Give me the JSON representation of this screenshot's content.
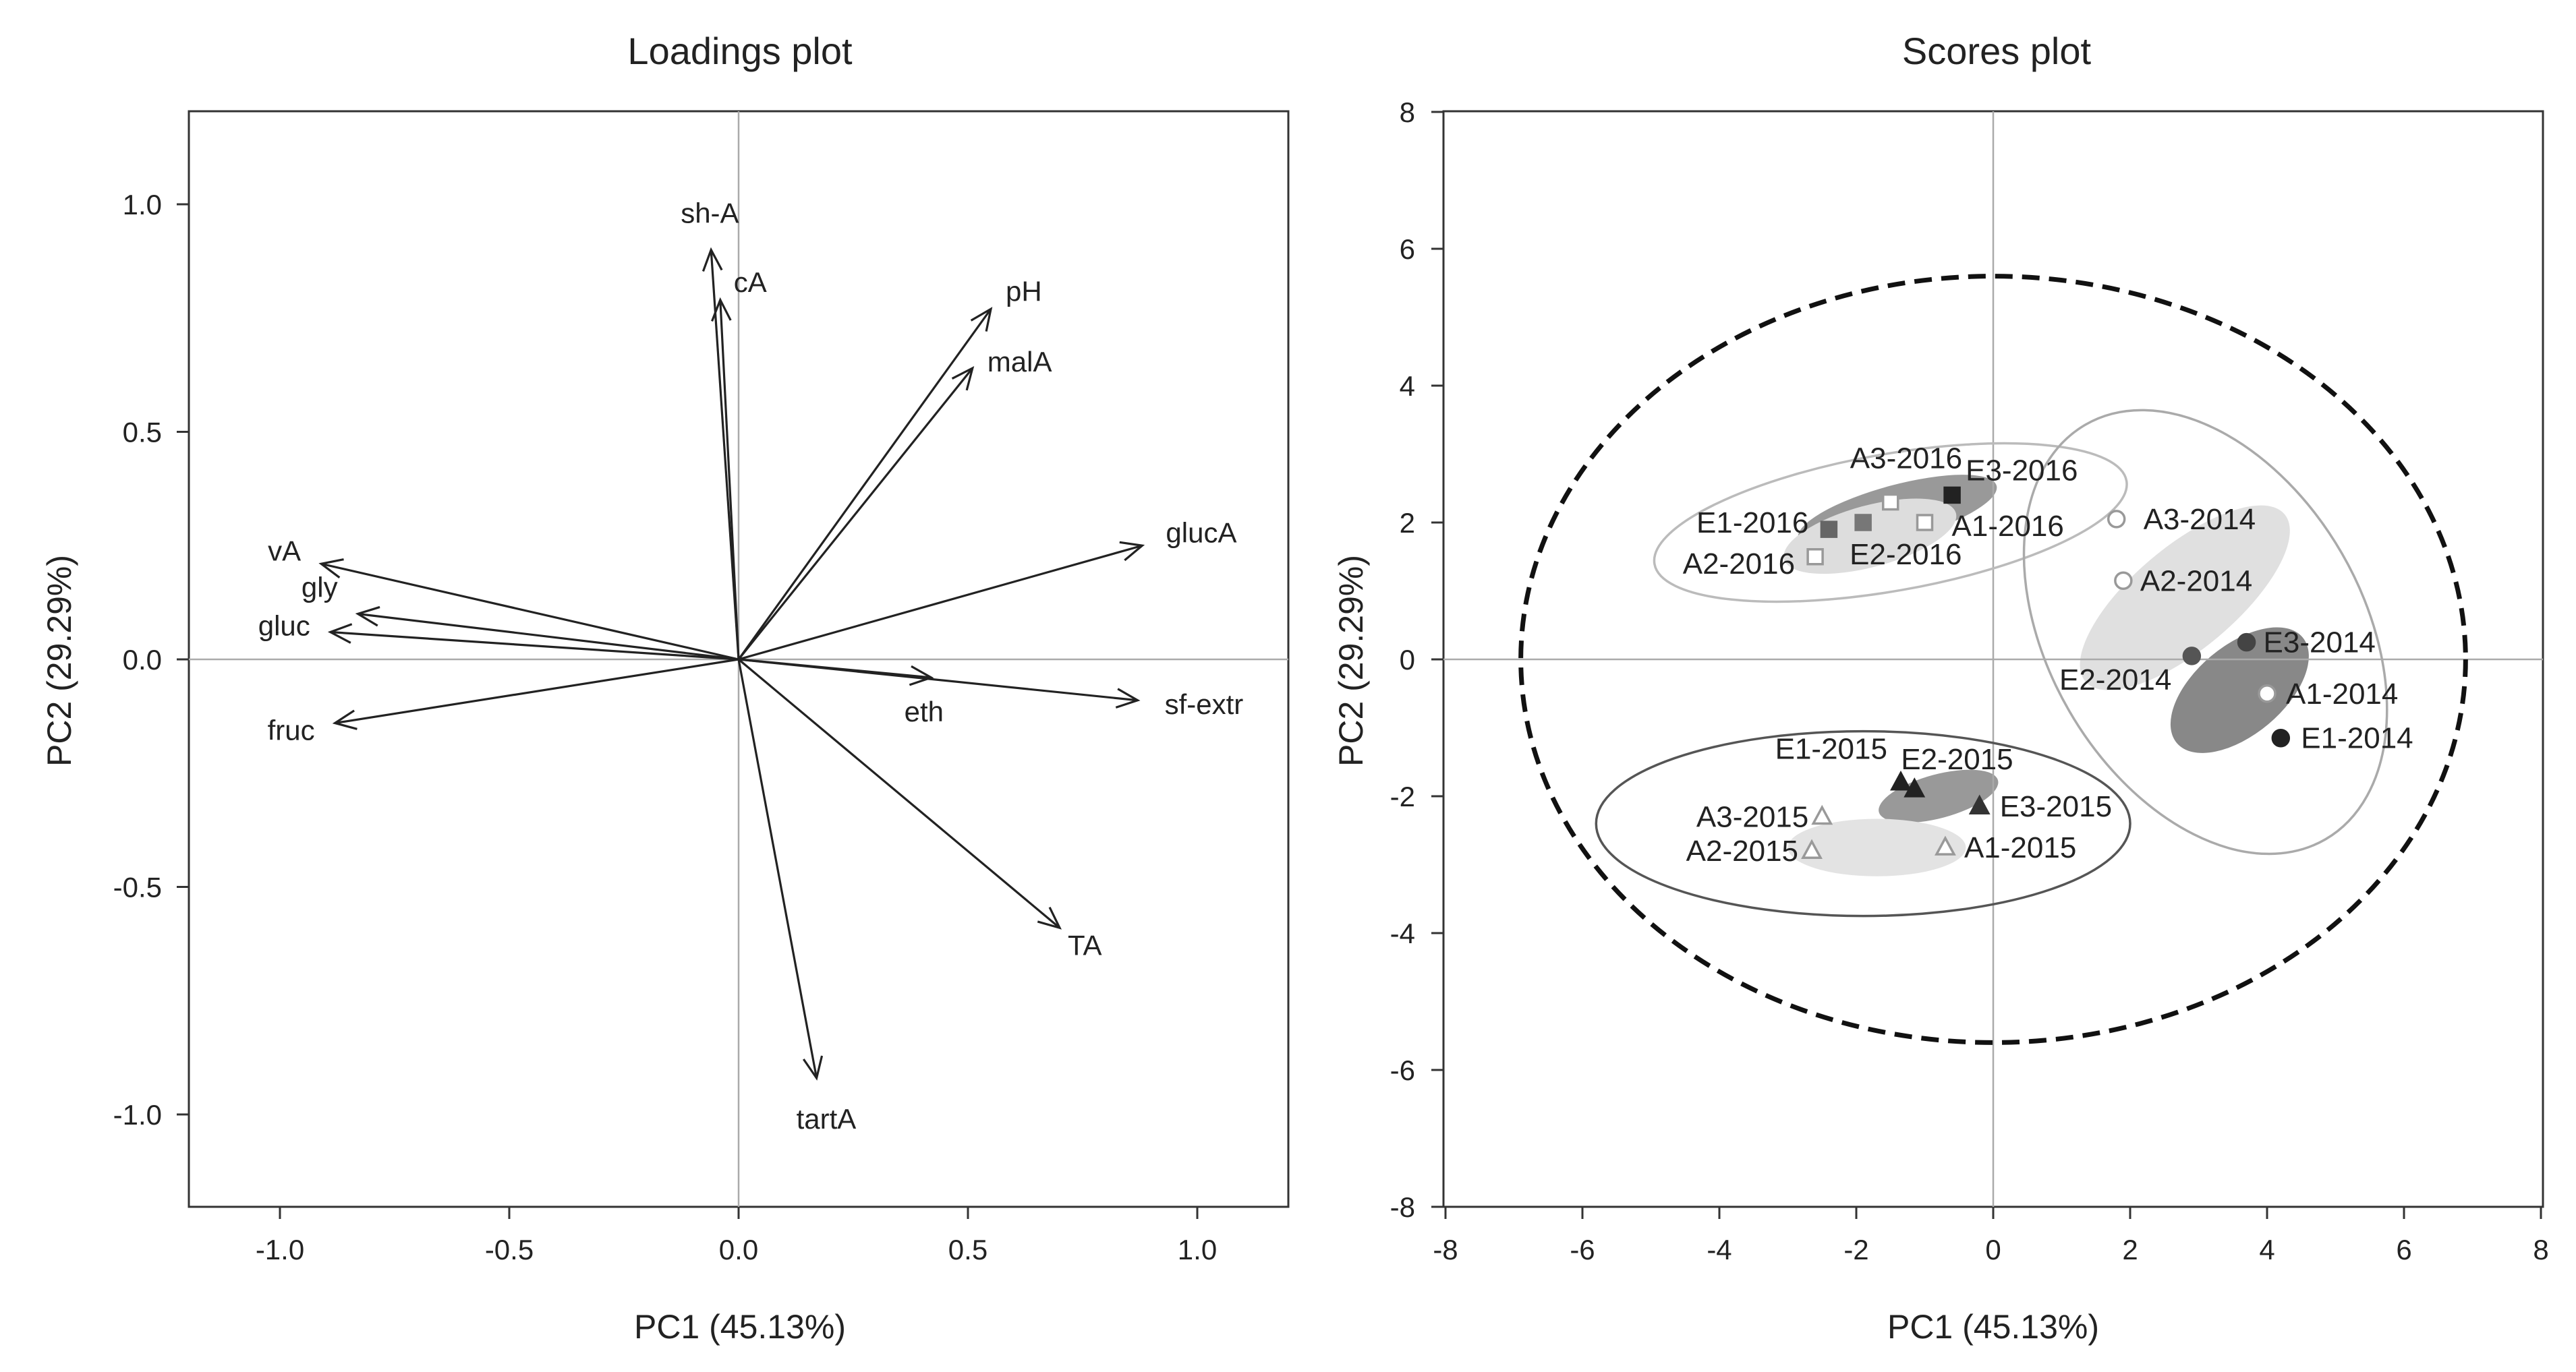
{
  "chart_data": [
    {
      "type": "biplot-loadings",
      "title": "Loadings plot",
      "xlabel": "PC1 (45.13%)",
      "ylabel": "PC2 (29.29%)",
      "xlim": [
        -1.2,
        1.2
      ],
      "ylim": [
        -1.2,
        1.2
      ],
      "xticks": [
        -1.0,
        -0.5,
        0.0,
        0.5,
        1.0
      ],
      "yticks": [
        -1.0,
        -0.5,
        0.0,
        0.5,
        1.0
      ],
      "xtick_labels": [
        "-1.0",
        "-0.5",
        "0.0",
        "0.5",
        "1.0"
      ],
      "ytick_labels": [
        "-1.0",
        "-0.5",
        "0.0",
        "0.5",
        "1.0"
      ],
      "vectors": [
        {
          "name": "sh-A",
          "x": -0.06,
          "y": 0.9
        },
        {
          "name": "cA",
          "x": -0.04,
          "y": 0.79
        },
        {
          "name": "pH",
          "x": 0.55,
          "y": 0.77
        },
        {
          "name": "malA",
          "x": 0.51,
          "y": 0.64
        },
        {
          "name": "glucA",
          "x": 0.88,
          "y": 0.25
        },
        {
          "name": "vA",
          "x": -0.91,
          "y": 0.21
        },
        {
          "name": "gly",
          "x": -0.83,
          "y": 0.1
        },
        {
          "name": "gluc",
          "x": -0.89,
          "y": 0.06
        },
        {
          "name": "fruc",
          "x": -0.88,
          "y": -0.14
        },
        {
          "name": "eth",
          "x": 0.42,
          "y": -0.04
        },
        {
          "name": "sf-extr",
          "x": 0.87,
          "y": -0.09
        },
        {
          "name": "TA",
          "x": 0.7,
          "y": -0.59
        },
        {
          "name": "tartA",
          "x": 0.17,
          "y": -0.92
        }
      ]
    },
    {
      "type": "scatter",
      "title": "Scores plot",
      "xlabel": "PC1 (45.13%)",
      "ylabel": "PC2 (29.29%)",
      "xlim": [
        -8,
        8
      ],
      "ylim": [
        -8,
        8
      ],
      "xticks": [
        -8,
        -6,
        -4,
        -2,
        0,
        2,
        4,
        6,
        8
      ],
      "yticks": [
        -8,
        -6,
        -4,
        -2,
        0,
        2,
        4,
        6,
        8
      ],
      "xtick_labels": [
        "-8",
        "-6",
        "-4",
        "-2",
        "0",
        "2",
        "4",
        "6",
        "8"
      ],
      "ytick_labels": [
        "-8",
        "-6",
        "-4",
        "-2",
        "0",
        "2",
        "4",
        "6",
        "8"
      ],
      "points": [
        {
          "label": "A3-2016",
          "x": -1.5,
          "y": 2.3,
          "marker": "square-open",
          "color": "#999999"
        },
        {
          "label": "E3-2016",
          "x": -0.6,
          "y": 2.4,
          "marker": "square-filled",
          "color": "#222222"
        },
        {
          "label": "E1-2016",
          "x": -2.4,
          "y": 1.9,
          "marker": "square-filled",
          "color": "#666666"
        },
        {
          "label": "A1-2016",
          "x": -1.0,
          "y": 2.0,
          "marker": "square-open",
          "color": "#999999"
        },
        {
          "label": "A2-2016",
          "x": -2.6,
          "y": 1.5,
          "marker": "square-open",
          "color": "#999999"
        },
        {
          "label": "E2-2016",
          "x": -1.9,
          "y": 2.0,
          "marker": "square-filled",
          "color": "#777777"
        },
        {
          "label": "A3-2014",
          "x": 1.8,
          "y": 2.05,
          "marker": "circle-open",
          "color": "#999999"
        },
        {
          "label": "A2-2014",
          "x": 1.9,
          "y": 1.15,
          "marker": "circle-open",
          "color": "#999999"
        },
        {
          "label": "E3-2014",
          "x": 3.7,
          "y": 0.25,
          "marker": "circle-filled",
          "color": "#444444"
        },
        {
          "label": "E2-2014",
          "x": 2.9,
          "y": 0.05,
          "marker": "circle-filled",
          "color": "#555555"
        },
        {
          "label": "A1-2014",
          "x": 4.0,
          "y": -0.5,
          "marker": "circle-open",
          "color": "#999999"
        },
        {
          "label": "E1-2014",
          "x": 4.2,
          "y": -1.15,
          "marker": "circle-filled",
          "color": "#222222"
        },
        {
          "label": "E1-2015",
          "x": -1.35,
          "y": -1.8,
          "marker": "triangle-filled",
          "color": "#222222"
        },
        {
          "label": "E2-2015",
          "x": -1.15,
          "y": -1.9,
          "marker": "triangle-filled",
          "color": "#222222"
        },
        {
          "label": "E3-2015",
          "x": -0.2,
          "y": -2.15,
          "marker": "triangle-filled",
          "color": "#333333"
        },
        {
          "label": "A3-2015",
          "x": -2.5,
          "y": -2.3,
          "marker": "triangle-open",
          "color": "#999999"
        },
        {
          "label": "A2-2015",
          "x": -2.65,
          "y": -2.8,
          "marker": "triangle-open",
          "color": "#999999"
        },
        {
          "label": "A1-2015",
          "x": -0.7,
          "y": -2.75,
          "marker": "triangle-open",
          "color": "#999999"
        }
      ],
      "ellipses": [
        {
          "name": "overall-confidence",
          "cx": 0.0,
          "cy": 0.0,
          "rx": 6.9,
          "ry": 5.6,
          "rotate": 0,
          "style": "dashed",
          "stroke": "#111111",
          "fill": "none"
        },
        {
          "name": "group-2016",
          "cx": -1.5,
          "cy": 2.0,
          "rx": 3.5,
          "ry": 1.0,
          "rotate": -10,
          "style": "solid",
          "stroke": "#bbbbbb",
          "fill": "none"
        },
        {
          "name": "group-2014",
          "cx": 3.1,
          "cy": 0.4,
          "rx": 2.3,
          "ry": 3.5,
          "rotate": -30,
          "style": "solid",
          "stroke": "#aaaaaa",
          "fill": "none"
        },
        {
          "name": "group-2015",
          "cx": -1.9,
          "cy": -2.4,
          "rx": 3.9,
          "ry": 1.35,
          "rotate": 0,
          "style": "solid",
          "stroke": "#555555",
          "fill": "none"
        },
        {
          "name": "E-2016",
          "cx": -1.4,
          "cy": 2.15,
          "rx": 1.5,
          "ry": 0.4,
          "rotate": -15,
          "style": "filled",
          "stroke": "none",
          "fill": "#999999"
        },
        {
          "name": "A-2016",
          "cx": -1.8,
          "cy": 1.8,
          "rx": 1.3,
          "ry": 0.45,
          "rotate": -15,
          "style": "filled",
          "stroke": "none",
          "fill": "#dddddd"
        },
        {
          "name": "A-2014",
          "cx": 2.8,
          "cy": 0.9,
          "rx": 1.9,
          "ry": 0.75,
          "rotate": -40,
          "style": "filled",
          "stroke": "none",
          "fill": "#e0e0e0"
        },
        {
          "name": "E-2014",
          "cx": 3.6,
          "cy": -0.45,
          "rx": 1.2,
          "ry": 0.65,
          "rotate": -40,
          "style": "filled",
          "stroke": "none",
          "fill": "#888888"
        },
        {
          "name": "E-2015",
          "cx": -0.8,
          "cy": -2.0,
          "rx": 0.9,
          "ry": 0.32,
          "rotate": -15,
          "style": "filled",
          "stroke": "none",
          "fill": "#999999"
        },
        {
          "name": "A-2015",
          "cx": -1.7,
          "cy": -2.75,
          "rx": 1.3,
          "ry": 0.42,
          "rotate": 0,
          "style": "filled",
          "stroke": "none",
          "fill": "#e3e3e3"
        }
      ]
    }
  ]
}
